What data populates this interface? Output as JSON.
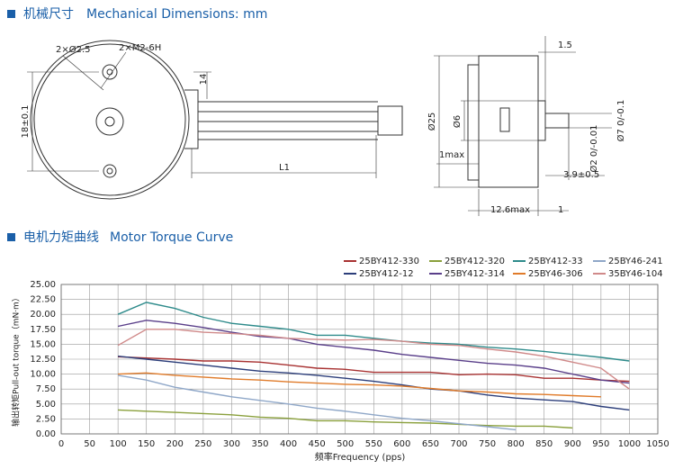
{
  "sections": [
    {
      "title_cn": "机械尺寸",
      "title_en": "Mechanical Dimensions: mm"
    },
    {
      "title_cn": "电机力矩曲线",
      "title_en": "Motor Torque Curve"
    }
  ],
  "drawing": {
    "labels": [
      "2×Ø2.5",
      "2×M2-6H",
      "18±0.1",
      "14",
      "L1",
      "1.5",
      "Ø25",
      "Ø6",
      "1max",
      "3.9±0.5",
      "12.6max",
      "1",
      "Ø7 0/-0.1",
      "Ø2 0/-0.01"
    ]
  },
  "chart_data": {
    "type": "line",
    "x_label": "频率Frequency (pps)",
    "y_label": "输出转矩Pull-out torque（mN·m）",
    "x": [
      100,
      150,
      200,
      250,
      300,
      350,
      400,
      450,
      500,
      550,
      600,
      650,
      700,
      750,
      800,
      850,
      900,
      950,
      1000
    ],
    "series": [
      {
        "name": "25BY412-330",
        "color": "#a83232",
        "values": [
          12.9,
          12.7,
          12.5,
          12.2,
          12.2,
          12.0,
          11.5,
          11.0,
          10.8,
          10.3,
          10.3,
          10.3,
          9.9,
          10.0,
          9.9,
          9.3,
          9.3,
          9.0,
          8.8
        ]
      },
      {
        "name": "25BY412-320",
        "color": "#8aa03c",
        "values": [
          4.0,
          3.8,
          3.6,
          3.4,
          3.2,
          2.8,
          2.6,
          2.2,
          2.2,
          2.0,
          1.9,
          1.8,
          1.6,
          1.4,
          1.3,
          1.3,
          1.0,
          null,
          null
        ]
      },
      {
        "name": "25BY412-33",
        "color": "#2e8b8b",
        "values": [
          20.0,
          22.0,
          21.0,
          19.5,
          18.5,
          18.0,
          17.5,
          16.5,
          16.5,
          16.0,
          15.5,
          15.2,
          15.0,
          14.5,
          14.2,
          13.8,
          13.3,
          12.8,
          12.2
        ]
      },
      {
        "name": "25BY46-241",
        "color": "#8fa7c8",
        "values": [
          9.8,
          9.0,
          7.8,
          7.0,
          6.2,
          5.6,
          5.0,
          4.3,
          3.8,
          3.2,
          2.6,
          2.2,
          1.7,
          1.2,
          0.7,
          null,
          null,
          null,
          null
        ]
      },
      {
        "name": "25BY412-12",
        "color": "#2c3e7a",
        "values": [
          13.0,
          12.5,
          12.0,
          11.5,
          11.0,
          10.5,
          10.2,
          9.8,
          9.3,
          8.8,
          8.2,
          7.5,
          7.2,
          6.5,
          6.0,
          5.7,
          5.4,
          4.6,
          4.0
        ]
      },
      {
        "name": "25BY412-314",
        "color": "#5a3f8a",
        "values": [
          18.0,
          19.0,
          18.5,
          17.8,
          17.0,
          16.3,
          16.0,
          15.0,
          14.5,
          14.0,
          13.3,
          12.8,
          12.3,
          11.8,
          11.5,
          11.0,
          10.0,
          9.0,
          8.5
        ]
      },
      {
        "name": "25BY46-306",
        "color": "#e07b2a",
        "values": [
          10.0,
          10.2,
          9.8,
          9.5,
          9.2,
          9.0,
          8.7,
          8.5,
          8.3,
          8.2,
          8.0,
          7.6,
          7.2,
          7.0,
          6.7,
          6.6,
          6.4,
          6.2,
          null
        ]
      },
      {
        "name": "35BY46-104",
        "color": "#d08a8a",
        "values": [
          14.8,
          17.5,
          17.5,
          17.0,
          16.8,
          16.5,
          16.0,
          15.8,
          15.7,
          15.8,
          15.5,
          15.0,
          14.8,
          14.2,
          13.7,
          13.0,
          12.0,
          11.0,
          7.5
        ]
      }
    ],
    "xlim": [
      0,
      1050
    ],
    "xticks": [
      0,
      50,
      100,
      150,
      200,
      250,
      300,
      350,
      400,
      450,
      500,
      550,
      600,
      650,
      700,
      750,
      800,
      850,
      900,
      950,
      1000,
      1050
    ],
    "ylim": [
      0,
      25
    ],
    "yticks": [
      {
        "value": 0,
        "label": "0.00"
      },
      {
        "value": 2.5,
        "label": "2.50"
      },
      {
        "value": 5,
        "label": "5.00"
      },
      {
        "value": 7.5,
        "label": "7.50"
      },
      {
        "value": 10,
        "label": "10.00"
      },
      {
        "value": 12.5,
        "label": "12.50"
      },
      {
        "value": 15,
        "label": "15.00"
      },
      {
        "value": 17.5,
        "label": "17.50"
      },
      {
        "value": 20,
        "label": "20.00"
      },
      {
        "value": 22.5,
        "label": "22.50"
      },
      {
        "value": 25,
        "label": "25.00"
      }
    ],
    "grid": true
  }
}
